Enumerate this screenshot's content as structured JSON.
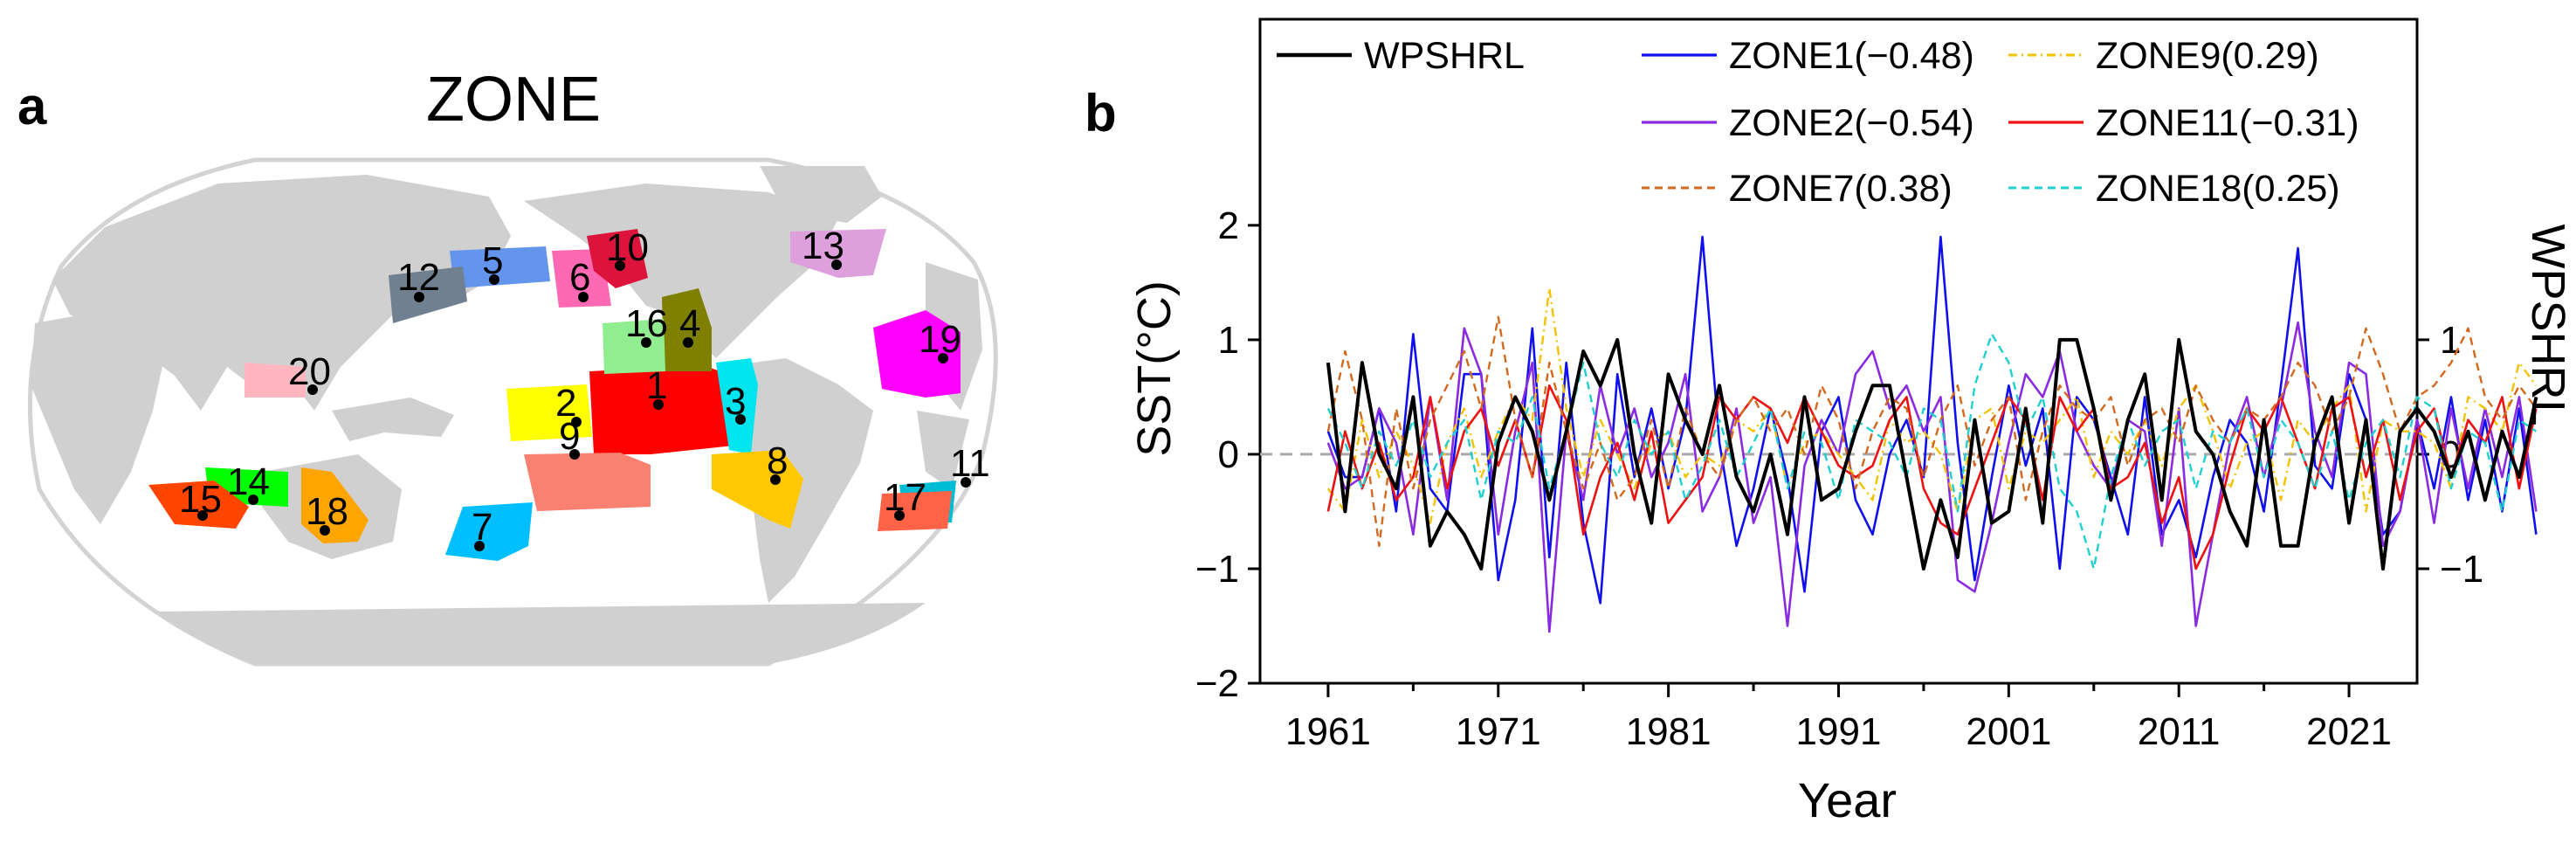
{
  "panels": {
    "a_label": "a",
    "b_label": "b"
  },
  "map": {
    "title": "ZONE",
    "zones": [
      {
        "id": "1",
        "color": "#ff0000"
      },
      {
        "id": "2",
        "color": "#ffff00"
      },
      {
        "id": "3",
        "color": "#00e5ee"
      },
      {
        "id": "4",
        "color": "#808000"
      },
      {
        "id": "5",
        "color": "#6495ed"
      },
      {
        "id": "6",
        "color": "#ff69b4"
      },
      {
        "id": "7",
        "color": "#00bfff"
      },
      {
        "id": "8",
        "color": "#ffc800"
      },
      {
        "id": "9",
        "color": "#fa8072"
      },
      {
        "id": "10",
        "color": "#dc143c"
      },
      {
        "id": "11",
        "color": "#00bcd4"
      },
      {
        "id": "12",
        "color": "#708090"
      },
      {
        "id": "13",
        "color": "#dda0dd"
      },
      {
        "id": "14",
        "color": "#00ff00"
      },
      {
        "id": "15",
        "color": "#ff4500"
      },
      {
        "id": "16",
        "color": "#90ee90"
      },
      {
        "id": "17",
        "color": "#ff6347"
      },
      {
        "id": "18",
        "color": "#ffa500"
      },
      {
        "id": "19",
        "color": "#ff00ff"
      },
      {
        "id": "20",
        "color": "#ffb6c1"
      }
    ]
  },
  "chart_data": {
    "type": "line",
    "xlabel": "Year",
    "ylabel": "SST(°C)",
    "ylabel_right": "WPSHRL",
    "xlim": [
      1957,
      2025
    ],
    "ylim": [
      -2,
      3.8
    ],
    "ylim_right": [
      -2,
      3.8
    ],
    "x_ticks": [
      1961,
      1971,
      1981,
      1991,
      2001,
      2011,
      2021
    ],
    "y_ticks": [
      -2,
      -1,
      0,
      1,
      2
    ],
    "y_ticks_right": [
      -1,
      0,
      1
    ],
    "legend_position": "top",
    "zero_line": true,
    "series": [
      {
        "name": "WPSHRL",
        "axis": "right",
        "color": "#000000",
        "dash": "",
        "width": 4,
        "start": 1961,
        "values": [
          0.8,
          -0.5,
          0.8,
          0.0,
          -0.3,
          0.5,
          -0.8,
          -0.5,
          -0.7,
          -1.0,
          0.1,
          0.5,
          0.2,
          -0.4,
          0.2,
          0.9,
          0.6,
          1.0,
          0.0,
          -0.6,
          0.7,
          0.3,
          0.0,
          0.6,
          -0.2,
          -0.5,
          0.0,
          -0.7,
          0.5,
          -0.4,
          -0.3,
          0.2,
          0.6,
          0.6,
          -0.2,
          -1.0,
          -0.4,
          -0.9,
          0.3,
          -0.6,
          -0.5,
          0.4,
          -0.6,
          1.0,
          1.0,
          0.4,
          -0.4,
          0.3,
          0.7,
          -0.4,
          1.0,
          0.2,
          0.0,
          -0.5,
          -0.8,
          0.3,
          -0.8,
          -0.8,
          0.1,
          0.5,
          -0.6,
          0.3,
          -1.0,
          0.2,
          0.4,
          0.2,
          -0.2,
          0.2,
          -0.4,
          0.2,
          -0.2,
          0.5
        ]
      },
      {
        "name": "ZONE1(−0.48)",
        "axis": "left",
        "color": "#1010ee",
        "dash": "",
        "width": 2.6,
        "start": 1961,
        "values": [
          0.2,
          -0.2,
          -0.2,
          0.4,
          -0.5,
          1.05,
          -0.3,
          -0.5,
          0.7,
          0.7,
          -1.1,
          -0.4,
          1.1,
          -0.9,
          0.8,
          -0.6,
          -1.3,
          0.7,
          -0.2,
          0.4,
          -0.3,
          0.3,
          1.9,
          0.1,
          -0.8,
          -0.3,
          0.4,
          -0.2,
          -1.2,
          0.2,
          0.5,
          -0.4,
          -0.7,
          0.0,
          0.3,
          -0.2,
          1.9,
          0.1,
          -1.1,
          -0.2,
          0.6,
          -0.1,
          0.4,
          -1.0,
          0.5,
          0.3,
          -0.2,
          -0.7,
          0.5,
          -0.7,
          -0.4,
          -0.9,
          -0.2,
          0.3,
          0.1,
          -0.5,
          0.6,
          1.8,
          -0.1,
          -0.3,
          0.7,
          0.3,
          -0.7,
          -0.5,
          0.3,
          -0.3,
          0.5,
          -0.4,
          0.3,
          -0.5,
          0.4,
          -0.7
        ]
      },
      {
        "name": "ZONE9(0.29)",
        "axis": "left",
        "color": "#f2c200",
        "dash": "10,5,2,5",
        "width": 2.4,
        "start": 1961,
        "values": [
          -0.3,
          -0.5,
          0.3,
          -0.2,
          0.2,
          -0.1,
          -0.6,
          0.1,
          0.4,
          -0.2,
          0.2,
          0.5,
          0.3,
          1.45,
          0.4,
          -0.2,
          0.3,
          0.0,
          -0.3,
          0.1,
          0.2,
          -0.2,
          0.0,
          -0.1,
          0.3,
          0.2,
          0.4,
          -0.3,
          0.1,
          0.2,
          0.0,
          -0.2,
          -0.4,
          0.3,
          0.1,
          0.2,
          0.0,
          -0.5,
          0.3,
          0.4,
          -0.3,
          0.2,
          0.1,
          0.3,
          0.5,
          -0.2,
          0.2,
          0.0,
          0.3,
          -0.1,
          0.4,
          0.6,
          0.2,
          -0.3,
          0.1,
          0.2,
          -0.4,
          0.3,
          0.1,
          0.4,
          0.6,
          -0.5,
          0.3,
          0.2,
          0.2,
          0.1,
          -0.3,
          0.5,
          0.4,
          0.2,
          0.8,
          0.6
        ]
      },
      {
        "name": "ZONE2(−0.54)",
        "axis": "left",
        "color": "#8a2be2",
        "dash": "",
        "width": 2.6,
        "start": 1961,
        "values": [
          0.1,
          -0.3,
          -0.2,
          0.4,
          0.1,
          -0.7,
          0.5,
          -0.4,
          1.1,
          0.7,
          -0.7,
          0.2,
          0.8,
          -1.55,
          0.2,
          -0.4,
          0.6,
          0.0,
          0.4,
          -0.2,
          0.1,
          0.7,
          -0.5,
          -0.2,
          0.4,
          -0.6,
          -0.2,
          -1.5,
          -0.1,
          0.3,
          0.0,
          0.7,
          0.9,
          0.4,
          0.6,
          0.2,
          0.5,
          -1.1,
          -1.2,
          -0.6,
          0.1,
          0.7,
          0.5,
          0.9,
          0.2,
          -0.1,
          -0.3,
          0.3,
          0.2,
          -0.8,
          0.4,
          -1.5,
          -0.7,
          0.1,
          0.5,
          -0.2,
          0.4,
          1.15,
          0.2,
          -0.2,
          0.8,
          0.7,
          -0.8,
          -0.5,
          0.3,
          -0.6,
          0.4,
          -0.3,
          0.4,
          -0.2,
          0.5,
          -0.5
        ]
      },
      {
        "name": "ZONE11(−0.31)",
        "axis": "left",
        "color": "#ee1111",
        "dash": "",
        "width": 2.6,
        "start": 1961,
        "values": [
          -0.5,
          0.2,
          -0.3,
          0.1,
          -0.4,
          -0.2,
          0.5,
          -0.3,
          0.2,
          0.4,
          -0.1,
          0.3,
          -0.2,
          0.6,
          0.3,
          -0.7,
          -0.2,
          0.1,
          -0.4,
          0.2,
          -0.6,
          -0.4,
          -0.2,
          0.5,
          0.3,
          0.5,
          0.4,
          0.1,
          0.5,
          0.2,
          -0.1,
          -0.2,
          -0.1,
          0.3,
          0.5,
          -0.3,
          -0.6,
          -0.7,
          -0.3,
          0.1,
          0.5,
          0.3,
          -0.4,
          0.5,
          0.2,
          0.4,
          -0.3,
          -0.2,
          0.1,
          -0.6,
          -0.2,
          -1.0,
          -0.7,
          -0.1,
          0.4,
          0.2,
          0.5,
          0.1,
          -0.3,
          0.4,
          0.5,
          -0.2,
          0.3,
          -0.4,
          0.2,
          0.4,
          -0.2,
          0.3,
          0.1,
          0.5,
          -0.3,
          0.4
        ]
      },
      {
        "name": "ZONE7(0.38)",
        "axis": "left",
        "color": "#d2691e",
        "dash": "9,6",
        "width": 2.4,
        "start": 1961,
        "values": [
          0.2,
          0.9,
          0.3,
          -0.8,
          0.4,
          -0.3,
          0.3,
          0.6,
          0.9,
          0.4,
          1.2,
          0.3,
          -0.2,
          0.8,
          0.2,
          -0.3,
          0.1,
          -0.4,
          -0.2,
          0.3,
          -0.3,
          0.4,
          0.0,
          -0.2,
          0.3,
          0.5,
          0.2,
          0.4,
          0.0,
          0.6,
          0.3,
          -0.3,
          0.2,
          0.5,
          0.4,
          -0.2,
          0.3,
          0.6,
          -0.1,
          0.3,
          0.5,
          -0.4,
          0.2,
          0.6,
          0.4,
          0.3,
          0.5,
          -0.1,
          0.3,
          0.4,
          0.1,
          0.6,
          0.3,
          0.1,
          0.4,
          0.3,
          0.5,
          0.8,
          0.6,
          0.2,
          0.5,
          1.1,
          0.7,
          0.2,
          0.5,
          0.6,
          0.8,
          1.1,
          0.5,
          0.3,
          0.6,
          0.4
        ]
      },
      {
        "name": "ZONE18(0.25)",
        "axis": "left",
        "color": "#20d0d0",
        "dash": "9,6",
        "width": 2.4,
        "start": 1961,
        "values": [
          0.4,
          0.1,
          -0.3,
          0.2,
          -0.1,
          0.3,
          -0.2,
          0.1,
          0.3,
          -0.4,
          0.2,
          0.1,
          0.5,
          -0.3,
          0.2,
          0.8,
          0.1,
          -0.2,
          0.3,
          0.0,
          0.2,
          -0.4,
          -0.1,
          0.3,
          -0.2,
          0.1,
          0.4,
          -0.3,
          0.2,
          0.1,
          -0.4,
          0.3,
          0.2,
          0.1,
          -0.2,
          0.4,
          0.3,
          -0.5,
          0.6,
          1.05,
          0.8,
          0.2,
          0.5,
          -0.3,
          -0.5,
          -1.0,
          -0.2,
          0.3,
          -0.1,
          0.2,
          0.3,
          -0.3,
          0.2,
          0.1,
          0.4,
          -0.2,
          0.3,
          0.1,
          -0.3,
          0.2,
          -0.4,
          0.1,
          0.3,
          -0.2,
          0.5,
          0.4,
          -0.3,
          0.2,
          0.1,
          -0.5,
          0.3,
          0.2
        ]
      }
    ]
  }
}
